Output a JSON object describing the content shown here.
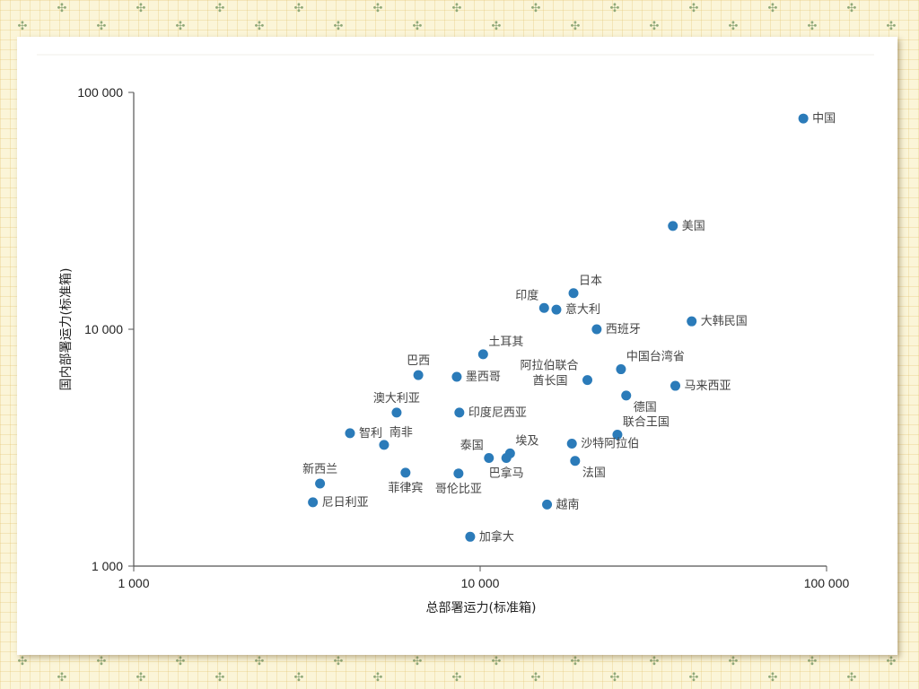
{
  "colors": {
    "point": "#2b7bb9",
    "axis": "#555555",
    "text": "#222222",
    "background": "#fbf5d8",
    "card": "#ffffff"
  },
  "chart_data": {
    "type": "scatter",
    "title": "",
    "xlabel": "总部署运力(标准箱)",
    "ylabel": "国内部署运力(标准箱)",
    "xscale": "log",
    "yscale": "log",
    "xlim": [
      1000,
      100000
    ],
    "ylim": [
      1000,
      100000
    ],
    "xticks": [
      1000,
      10000,
      100000
    ],
    "yticks": [
      1000,
      10000,
      100000
    ],
    "xtick_labels": [
      "1 000",
      "10 000",
      "100 000"
    ],
    "ytick_labels": [
      "1 000",
      "10 000",
      "100 000"
    ],
    "grid": false,
    "legend": null,
    "points": [
      {
        "label": "中国",
        "x": 85700,
        "y": 77600,
        "label_pos": "right"
      },
      {
        "label": "美国",
        "x": 36000,
        "y": 27300,
        "label_pos": "right"
      },
      {
        "label": "日本",
        "x": 18600,
        "y": 14200,
        "label_pos": "top-right"
      },
      {
        "label": "印度",
        "x": 15300,
        "y": 12300,
        "label_pos": "top-left"
      },
      {
        "label": "意大利",
        "x": 16600,
        "y": 12100,
        "label_pos": "right"
      },
      {
        "label": "西班牙",
        "x": 21700,
        "y": 10000,
        "label_pos": "right"
      },
      {
        "label": "大韩民国",
        "x": 40800,
        "y": 10800,
        "label_pos": "right"
      },
      {
        "label": "土耳其",
        "x": 10200,
        "y": 7840,
        "label_pos": "top-right"
      },
      {
        "label": "巴西",
        "x": 6630,
        "y": 6400,
        "label_pos": "top"
      },
      {
        "label": "墨西哥",
        "x": 8560,
        "y": 6300,
        "label_pos": "right"
      },
      {
        "label": "阿拉伯联合酋长国",
        "x": 20400,
        "y": 6100,
        "label_pos": "left"
      },
      {
        "label": "中国台湾省",
        "x": 25500,
        "y": 6780,
        "label_pos": "top-right"
      },
      {
        "label": "马来西亚",
        "x": 36600,
        "y": 5770,
        "label_pos": "right"
      },
      {
        "label": "德国",
        "x": 26400,
        "y": 5250,
        "label_pos": "bottom-right"
      },
      {
        "label": "澳大利亚",
        "x": 5740,
        "y": 4450,
        "label_pos": "top"
      },
      {
        "label": "印度尼西亚",
        "x": 8710,
        "y": 4450,
        "label_pos": "right"
      },
      {
        "label": "智利",
        "x": 4210,
        "y": 3640,
        "label_pos": "right"
      },
      {
        "label": "南非",
        "x": 5280,
        "y": 3250,
        "label_pos": "top-right"
      },
      {
        "label": "联合王国",
        "x": 24900,
        "y": 3590,
        "label_pos": "top-right"
      },
      {
        "label": "沙特阿拉伯",
        "x": 18400,
        "y": 3290,
        "label_pos": "right"
      },
      {
        "label": "泰国",
        "x": 10600,
        "y": 2860,
        "label_pos": "top-left"
      },
      {
        "label": "埃及",
        "x": 12200,
        "y": 2990,
        "label_pos": "top-right"
      },
      {
        "label": "巴拿马",
        "x": 11900,
        "y": 2860,
        "label_pos": "bottom"
      },
      {
        "label": "法国",
        "x": 18800,
        "y": 2780,
        "label_pos": "bottom-right"
      },
      {
        "label": "新西兰",
        "x": 3450,
        "y": 2230,
        "label_pos": "top"
      },
      {
        "label": "菲律宾",
        "x": 6090,
        "y": 2480,
        "label_pos": "bottom"
      },
      {
        "label": "哥伦比亚",
        "x": 8660,
        "y": 2460,
        "label_pos": "bottom"
      },
      {
        "label": "尼日利亚",
        "x": 3290,
        "y": 1860,
        "label_pos": "right"
      },
      {
        "label": "越南",
        "x": 15600,
        "y": 1820,
        "label_pos": "right"
      },
      {
        "label": "加拿大",
        "x": 9360,
        "y": 1330,
        "label_pos": "right"
      }
    ]
  }
}
